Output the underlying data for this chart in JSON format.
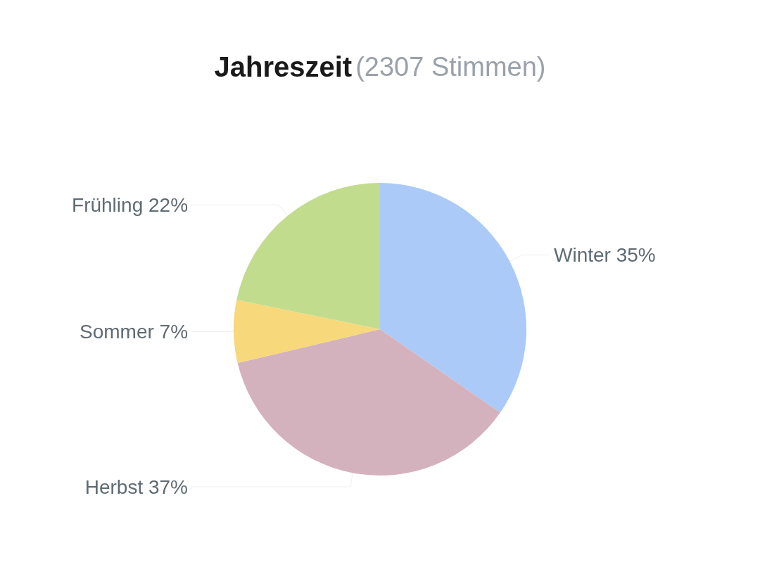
{
  "chart_data": {
    "type": "pie",
    "title": "Jahreszeit",
    "subtitle": "(2307 Stimmen)",
    "categories": [
      "Winter",
      "Herbst",
      "Sommer",
      "Frühling"
    ],
    "values": [
      35,
      37,
      7,
      22
    ],
    "colors": [
      "#abcaf8",
      "#d4b2bd",
      "#f7d87a",
      "#c1dc8d"
    ],
    "value_labels": [
      "35%",
      "37%",
      "7%",
      "22%"
    ],
    "legend": false
  }
}
